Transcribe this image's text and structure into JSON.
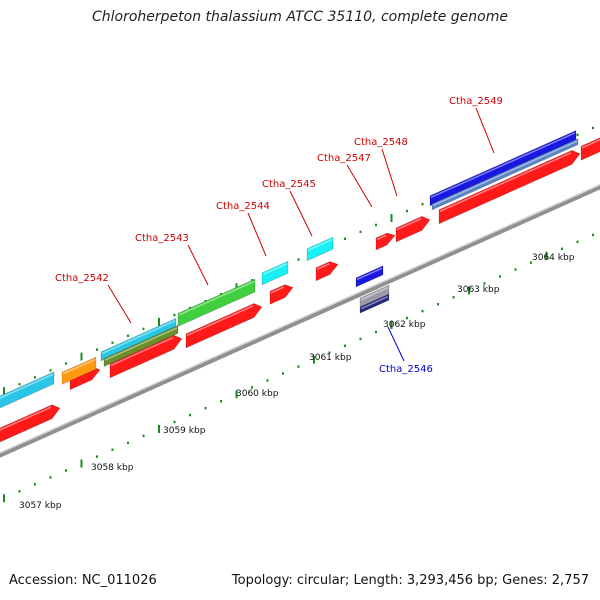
{
  "title": "Chloroherpeton thalassium ATCC 35110, complete genome",
  "accession": "Accession: NC_011026",
  "footer_info": "Topology: circular; Length: 3,293,456 bp; Genes: 2,757",
  "colors": {
    "label_red": "#cc0000",
    "label_blue": "#0000cc",
    "red_gene": "#ff1a1a",
    "cyan_gene": "#29c6e8",
    "bright_cyan_gene": "#17f0f5",
    "orange_gene": "#ff9a10",
    "green_gene": "#3fcf3f",
    "olive_gene": "#6a8f2a",
    "blue_gene": "#1818e0",
    "steel_gene": "#5a84c8",
    "grey_gene": "#9a9aa8",
    "navy_gene": "#26267a",
    "tick_green": "#1e8a1e",
    "backbone": "#909090"
  },
  "kbp_ticks": [
    "3057 kbp",
    "3058 kbp",
    "3059 kbp",
    "3060 kbp",
    "3061 kbp",
    "3062 kbp",
    "3063 kbp",
    "3064 kbp"
  ],
  "gene_labels": [
    {
      "name": "Ctha_2542",
      "color": "red"
    },
    {
      "name": "Ctha_2543",
      "color": "red"
    },
    {
      "name": "Ctha_2544",
      "color": "red"
    },
    {
      "name": "Ctha_2545",
      "color": "red"
    },
    {
      "name": "Ctha_2546",
      "color": "blue"
    },
    {
      "name": "Ctha_2547",
      "color": "red"
    },
    {
      "name": "Ctha_2548",
      "color": "red"
    },
    {
      "name": "Ctha_2549",
      "color": "red"
    }
  ]
}
